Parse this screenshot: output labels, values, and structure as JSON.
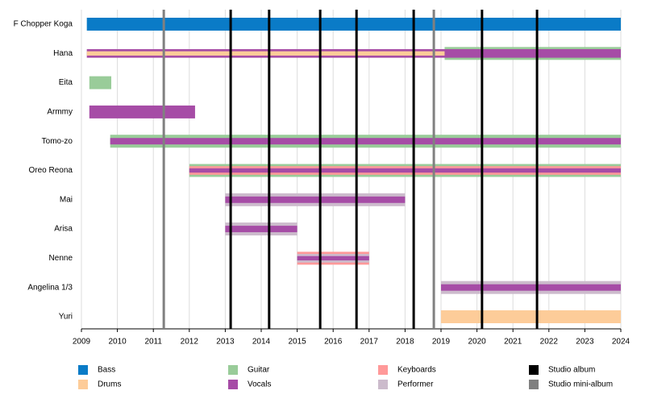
{
  "chart_data": {
    "type": "timeline",
    "categories": [
      "F Chopper Koga",
      "Hana",
      "Eita",
      "Armmy",
      "Tomo-zo",
      "Oreo Reona",
      "Mai",
      "Arisa",
      "Nenne",
      "Angelina 1/3",
      "Yuri"
    ],
    "xlim": [
      2009,
      2024
    ],
    "xticks": [
      2009,
      2010,
      2011,
      2012,
      2013,
      2014,
      2015,
      2016,
      2017,
      2018,
      2019,
      2020,
      2021,
      2022,
      2023,
      2024
    ],
    "grid": true,
    "series": [
      {
        "name": "Bass",
        "color": "#0a7bc7",
        "values": [
          [
            2009.15,
            2024
          ],
          null,
          null,
          null,
          null,
          null,
          null,
          null,
          null,
          null,
          null
        ]
      },
      {
        "name": "Drums",
        "color": "#fdcc99",
        "values": [
          null,
          [
            2009.15,
            2019.1
          ],
          null,
          null,
          null,
          null,
          null,
          null,
          null,
          null,
          [
            2019,
            2024
          ]
        ]
      },
      {
        "name": "Guitar",
        "color": "#99cc99",
        "values": [
          null,
          [
            2019.1,
            2024
          ],
          [
            2009.22,
            2009.83
          ],
          null,
          [
            2009.8,
            2024
          ],
          [
            2012,
            2024
          ],
          null,
          null,
          null,
          null,
          null
        ]
      },
      {
        "name": "Vocals",
        "color": "#a64ca6",
        "values": [
          null,
          [
            2009.15,
            2024
          ],
          null,
          [
            2009.22,
            2012.16
          ],
          [
            2009.8,
            2024
          ],
          [
            2012,
            2024
          ],
          [
            2013,
            2018
          ],
          [
            2013,
            2015
          ],
          [
            2015,
            2017
          ],
          [
            2019,
            2024
          ],
          null
        ]
      },
      {
        "name": "Keyboards",
        "color": "#ff9999",
        "values": [
          null,
          null,
          null,
          null,
          null,
          [
            2012,
            2024
          ],
          null,
          null,
          [
            2015,
            2017
          ],
          null,
          null
        ]
      },
      {
        "name": "Performer",
        "color": "#ccbbcc",
        "values": [
          null,
          null,
          null,
          null,
          null,
          null,
          [
            2013,
            2018
          ],
          [
            2013,
            2015
          ],
          [
            2015,
            2017
          ],
          [
            2019,
            2024
          ],
          null
        ]
      }
    ],
    "albums": [
      {
        "name": "Studio album",
        "color": "#000000",
        "values": [
          2013.15,
          2014.22,
          2015.64,
          2016.65,
          2018.24,
          2020.14,
          2021.67
        ]
      },
      {
        "name": "Studio mini-album",
        "color": "#808080",
        "values": [
          2011.29,
          2018.8
        ]
      }
    ]
  }
}
